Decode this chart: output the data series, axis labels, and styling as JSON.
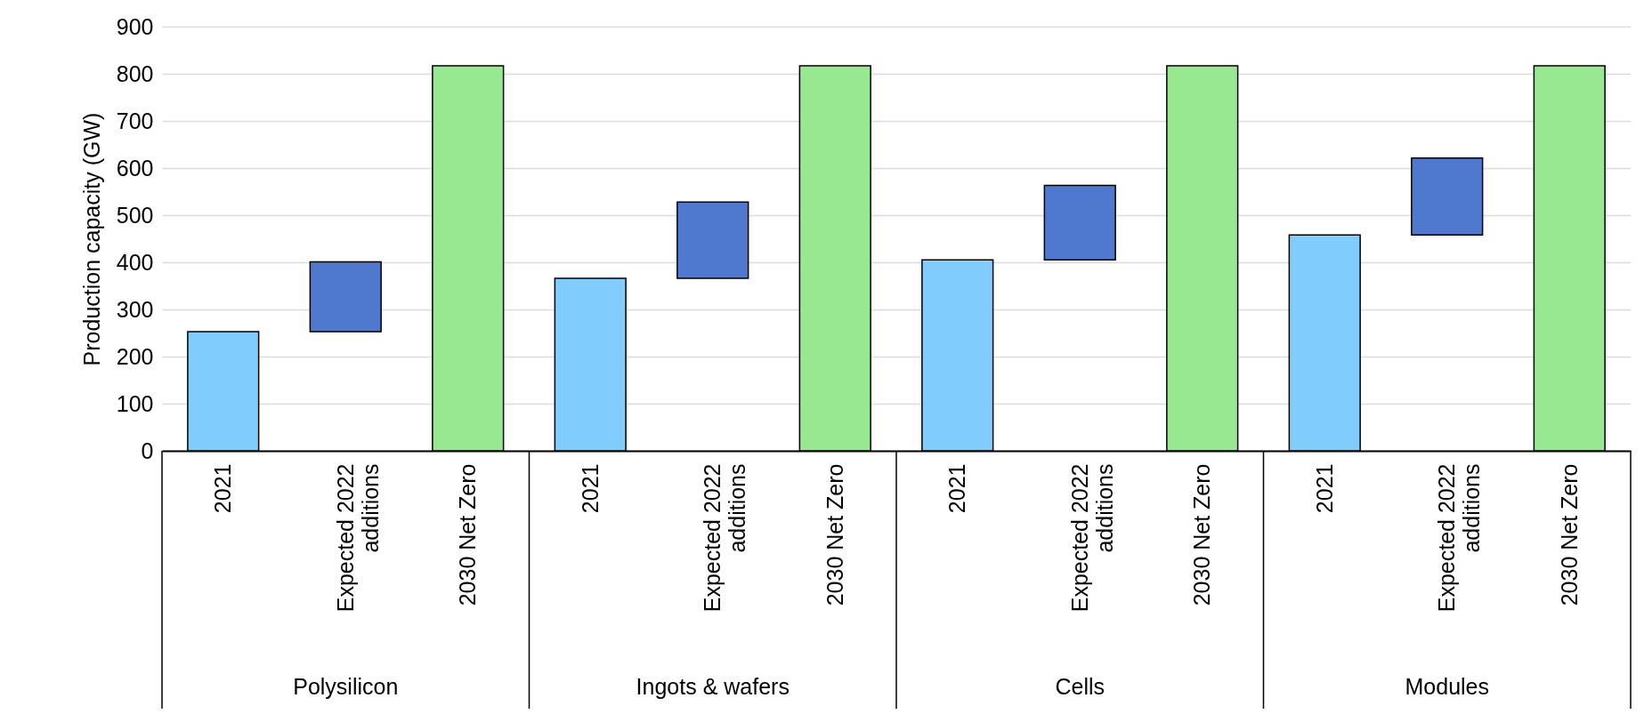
{
  "chart_data": {
    "type": "bar",
    "ylabel": "Production capacity (GW)",
    "categories": [
      "2021",
      "Expected 2022 additions",
      "2030 Net Zero",
      "2021",
      "Expected 2022 additions",
      "2030 Net Zero",
      "2021",
      "Expected 2022 additions",
      "2030 Net Zero",
      "2021",
      "Expected 2022 additions",
      "2030 Net Zero"
    ],
    "values": [
      253,
      148,
      817,
      366,
      162,
      817,
      405,
      158,
      817,
      458,
      163,
      817
    ],
    "base": [
      0,
      253,
      0,
      0,
      366,
      0,
      0,
      405,
      0,
      0,
      458,
      0
    ],
    "colors": [
      "#7fccfd",
      "#4f79cf",
      "#98e892",
      "#7fccfd",
      "#4f79cf",
      "#98e892",
      "#7fccfd",
      "#4f79cf",
      "#98e892",
      "#7fccfd",
      "#4f79cf",
      "#98e892"
    ],
    "ylim": [
      0,
      900
    ],
    "yticks": [
      0,
      100,
      200,
      300,
      400,
      500,
      600,
      700,
      800,
      900
    ],
    "grid": "y",
    "annotations": [
      "Polysilicon",
      "Ingots & wafers",
      "Cells",
      "Modules"
    ]
  }
}
